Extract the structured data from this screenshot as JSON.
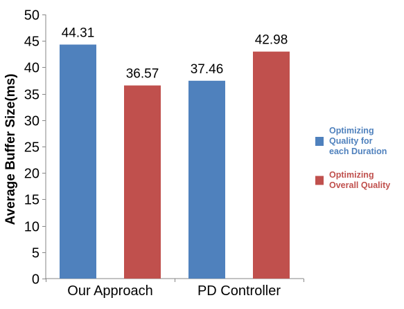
{
  "chart_data": {
    "type": "bar",
    "title": "",
    "xlabel": "",
    "ylabel": "Average Buffer Size(ms)",
    "ylim": [
      0,
      50
    ],
    "ytick_step": 5,
    "grid": false,
    "legend_position": "right",
    "categories": [
      "Our Approach",
      "PD Controller"
    ],
    "series": [
      {
        "name": "Optimizing Quality for each Duration",
        "legend_lines": [
          "Optimizing",
          "Quality for",
          "each Duration"
        ],
        "color": "#4f81bd",
        "label_color": "#4f81bd",
        "values": [
          44.31,
          37.46
        ],
        "value_labels": [
          "44.31",
          "37.46"
        ]
      },
      {
        "name": "Optimizing Overall Quality",
        "legend_lines": [
          "Optimizing",
          "Overall Quality"
        ],
        "color": "#c0504d",
        "label_color": "#c0504d",
        "values": [
          36.57,
          42.98
        ],
        "value_labels": [
          "36.57",
          "42.98"
        ]
      }
    ]
  }
}
